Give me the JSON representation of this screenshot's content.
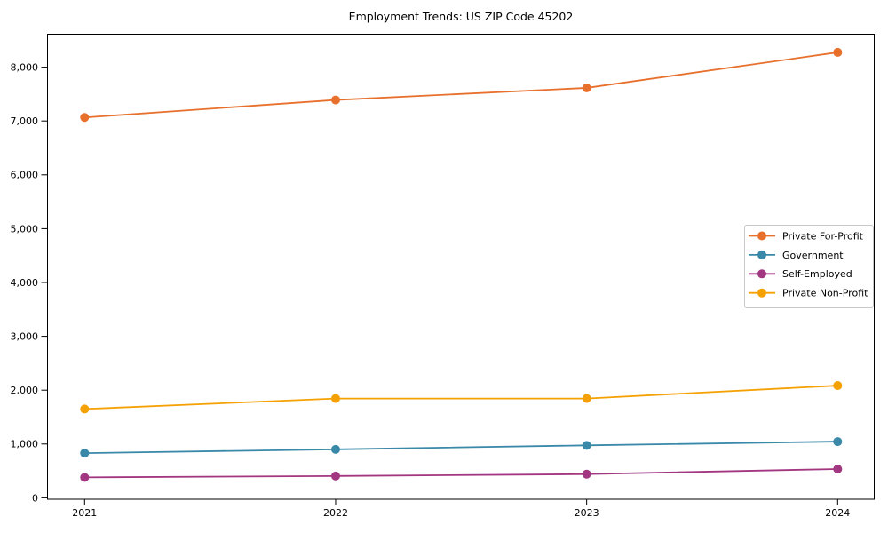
{
  "chart_data": {
    "type": "line",
    "title": "Employment Trends: US ZIP Code 45202",
    "x": [
      2021,
      2022,
      2023,
      2024
    ],
    "x_tick_labels": [
      "2021",
      "2022",
      "2023",
      "2024"
    ],
    "y_ticks": [
      0,
      1000,
      2000,
      3000,
      4000,
      5000,
      6000,
      7000,
      8000
    ],
    "y_tick_labels": [
      "0",
      "1,000",
      "2,000",
      "3,000",
      "4,000",
      "5,000",
      "6,000",
      "7,000",
      "8,000"
    ],
    "ylim": [
      0,
      8620
    ],
    "xlabel": "",
    "ylabel": "",
    "grid": false,
    "marker": "circle",
    "legend_position": "center-right",
    "background_color": "#ffffff",
    "axis_color": "#000000",
    "series": [
      {
        "name": "Private For-Profit",
        "color": "#E8702D",
        "values": [
          7065,
          7390,
          7615,
          8275
        ]
      },
      {
        "name": "Government",
        "color": "#3A89A9",
        "values": [
          830,
          900,
          975,
          1045
        ]
      },
      {
        "name": "Self-Employed",
        "color": "#A33680",
        "values": [
          380,
          405,
          440,
          535
        ]
      },
      {
        "name": "Private Non-Profit",
        "color": "#F5A104",
        "values": [
          1650,
          1845,
          1845,
          2085
        ]
      }
    ]
  }
}
